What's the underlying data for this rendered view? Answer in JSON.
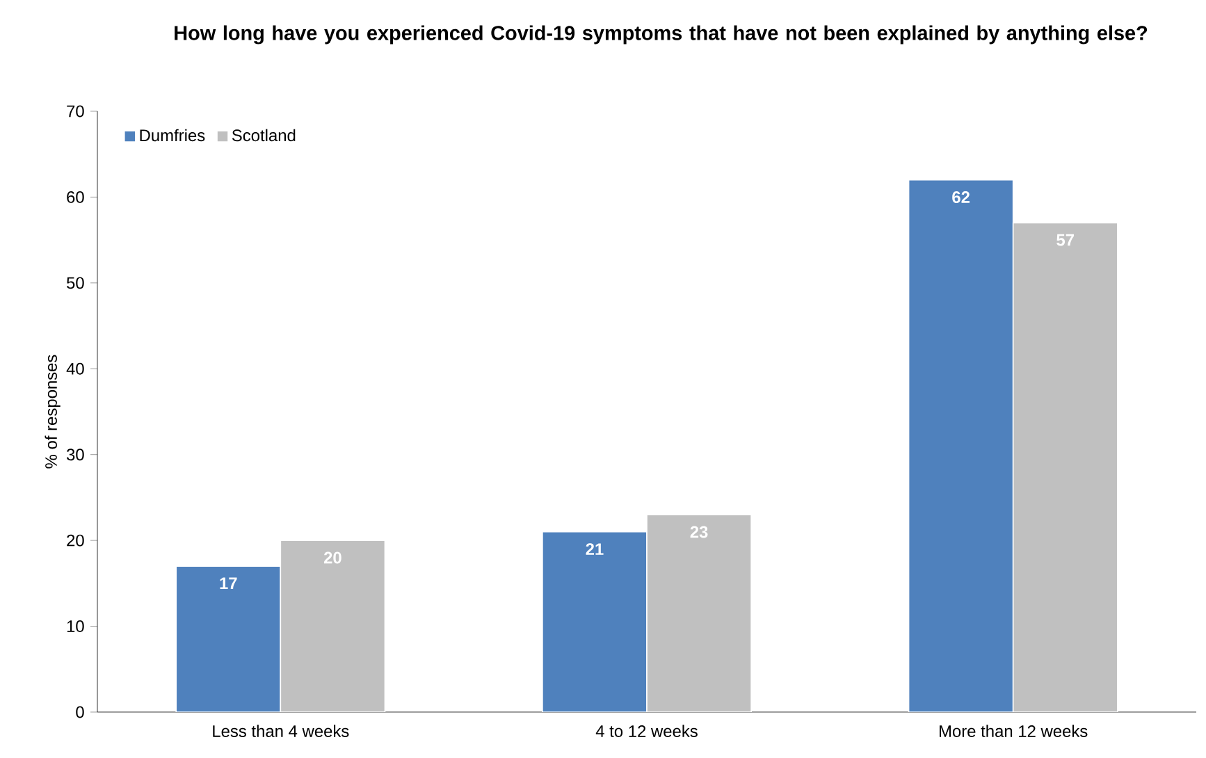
{
  "chart_data": {
    "type": "bar",
    "title": "How long have you experienced Covid-19 symptoms that have not been explained by anything else?",
    "ylabel": "% of responses",
    "categories": [
      "Less than 4 weeks",
      "4 to 12 weeks",
      "More than 12 weeks"
    ],
    "series": [
      {
        "name": "Dumfries",
        "color": "#4f81bd",
        "values": [
          17,
          21,
          62
        ]
      },
      {
        "name": "Scotland",
        "color": "#c0c0c0",
        "values": [
          20,
          23,
          57
        ]
      }
    ],
    "ylim": [
      0,
      70
    ],
    "yticks": [
      0,
      10,
      20,
      30,
      40,
      50,
      60,
      70
    ],
    "grid": false,
    "legend": "top left",
    "data_labels": true
  }
}
